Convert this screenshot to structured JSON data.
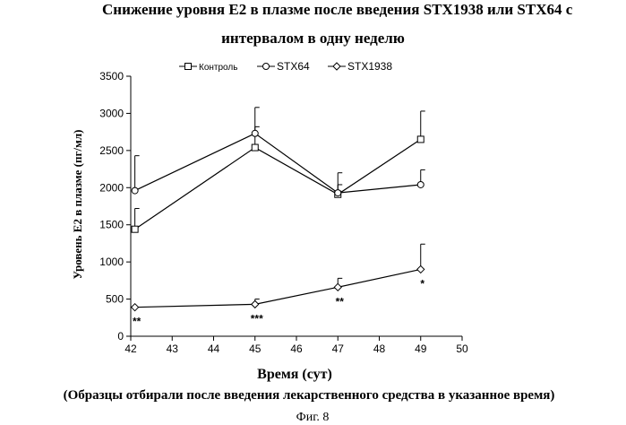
{
  "chart_data": {
    "type": "line",
    "title": "Снижение уровня Е2 в плазме после введения STX1938 или STX64 с",
    "subtitle": "интервалом в одну неделю",
    "xlabel": "Время (сут)",
    "note": "(Образцы отбирали после введения лекарственного средства в указанное время)",
    "figure_caption": "Фиг. 8",
    "ylabel": "Уровень Е2 в плазме (пг/мл)",
    "xlim": [
      42,
      50
    ],
    "ylim": [
      0,
      3500
    ],
    "x_ticks": [
      42,
      43,
      44,
      45,
      46,
      47,
      48,
      49,
      50
    ],
    "y_ticks": [
      0,
      500,
      1000,
      1500,
      2000,
      2500,
      3000,
      3500
    ],
    "legend_position": "top",
    "series": [
      {
        "name": "Контроль",
        "marker": "square",
        "x": [
          42.1,
          45,
          47,
          49
        ],
        "values": [
          1440,
          2540,
          1910,
          2650
        ],
        "errors": [
          280,
          540,
          290,
          380
        ]
      },
      {
        "name": "STX64",
        "marker": "circle",
        "x": [
          42.1,
          45,
          47,
          49
        ],
        "values": [
          1960,
          2730,
          1930,
          2040
        ],
        "errors": [
          470,
          90,
          110,
          200
        ]
      },
      {
        "name": "STX1938",
        "marker": "diamond",
        "x": [
          42.1,
          45,
          47,
          49
        ],
        "values": [
          390,
          430,
          660,
          900
        ],
        "errors": [
          0,
          70,
          120,
          340
        ]
      }
    ],
    "annotations": [
      {
        "x": 42.1,
        "text": "**"
      },
      {
        "x": 45,
        "text": "***"
      },
      {
        "x": 47,
        "text": "**"
      },
      {
        "x": 49,
        "text": "*"
      }
    ]
  }
}
